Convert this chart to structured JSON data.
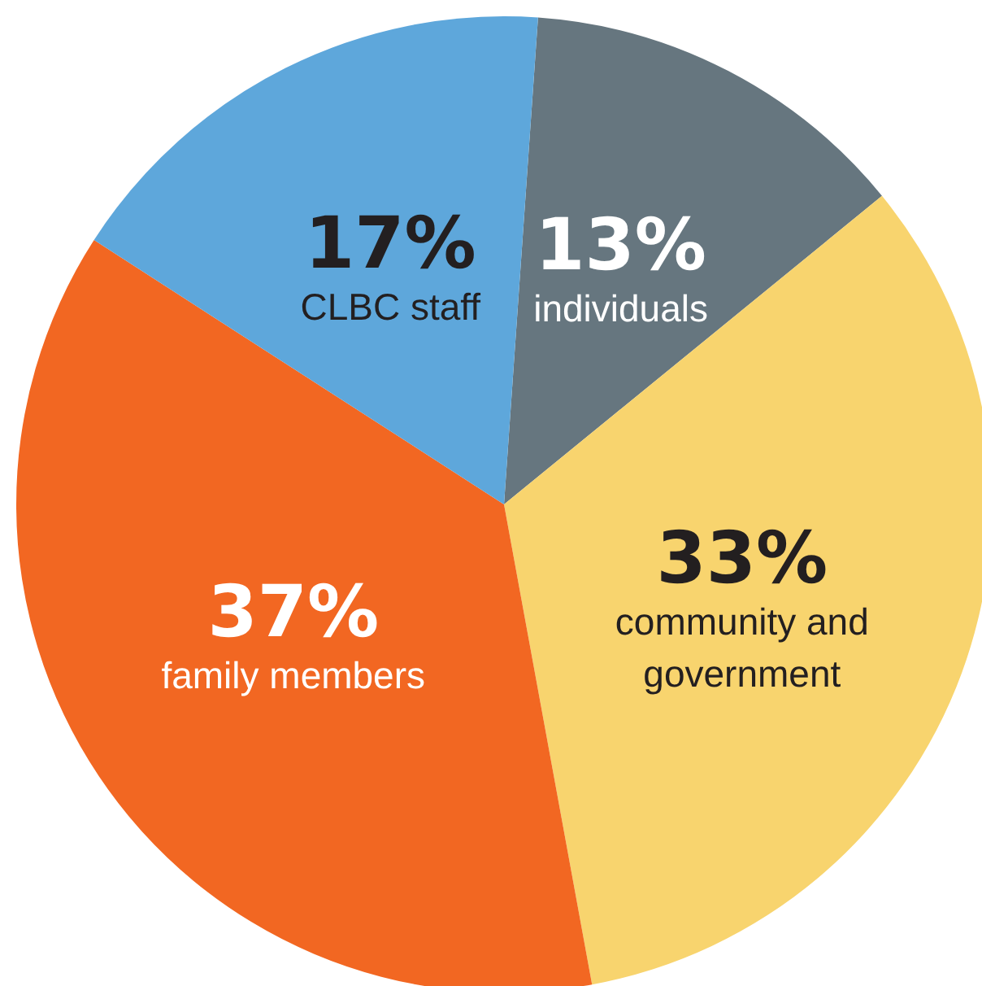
{
  "chart_data": {
    "type": "pie",
    "categories": [
      "individuals",
      "community and government",
      "family members",
      "CLBC staff"
    ],
    "values": [
      13,
      33,
      37,
      17
    ],
    "value_labels": [
      "13%",
      "33%",
      "37%",
      "17%"
    ],
    "colors": [
      "#66767f",
      "#f8d46e",
      "#f26722",
      "#5ea7db"
    ],
    "legend": false
  }
}
